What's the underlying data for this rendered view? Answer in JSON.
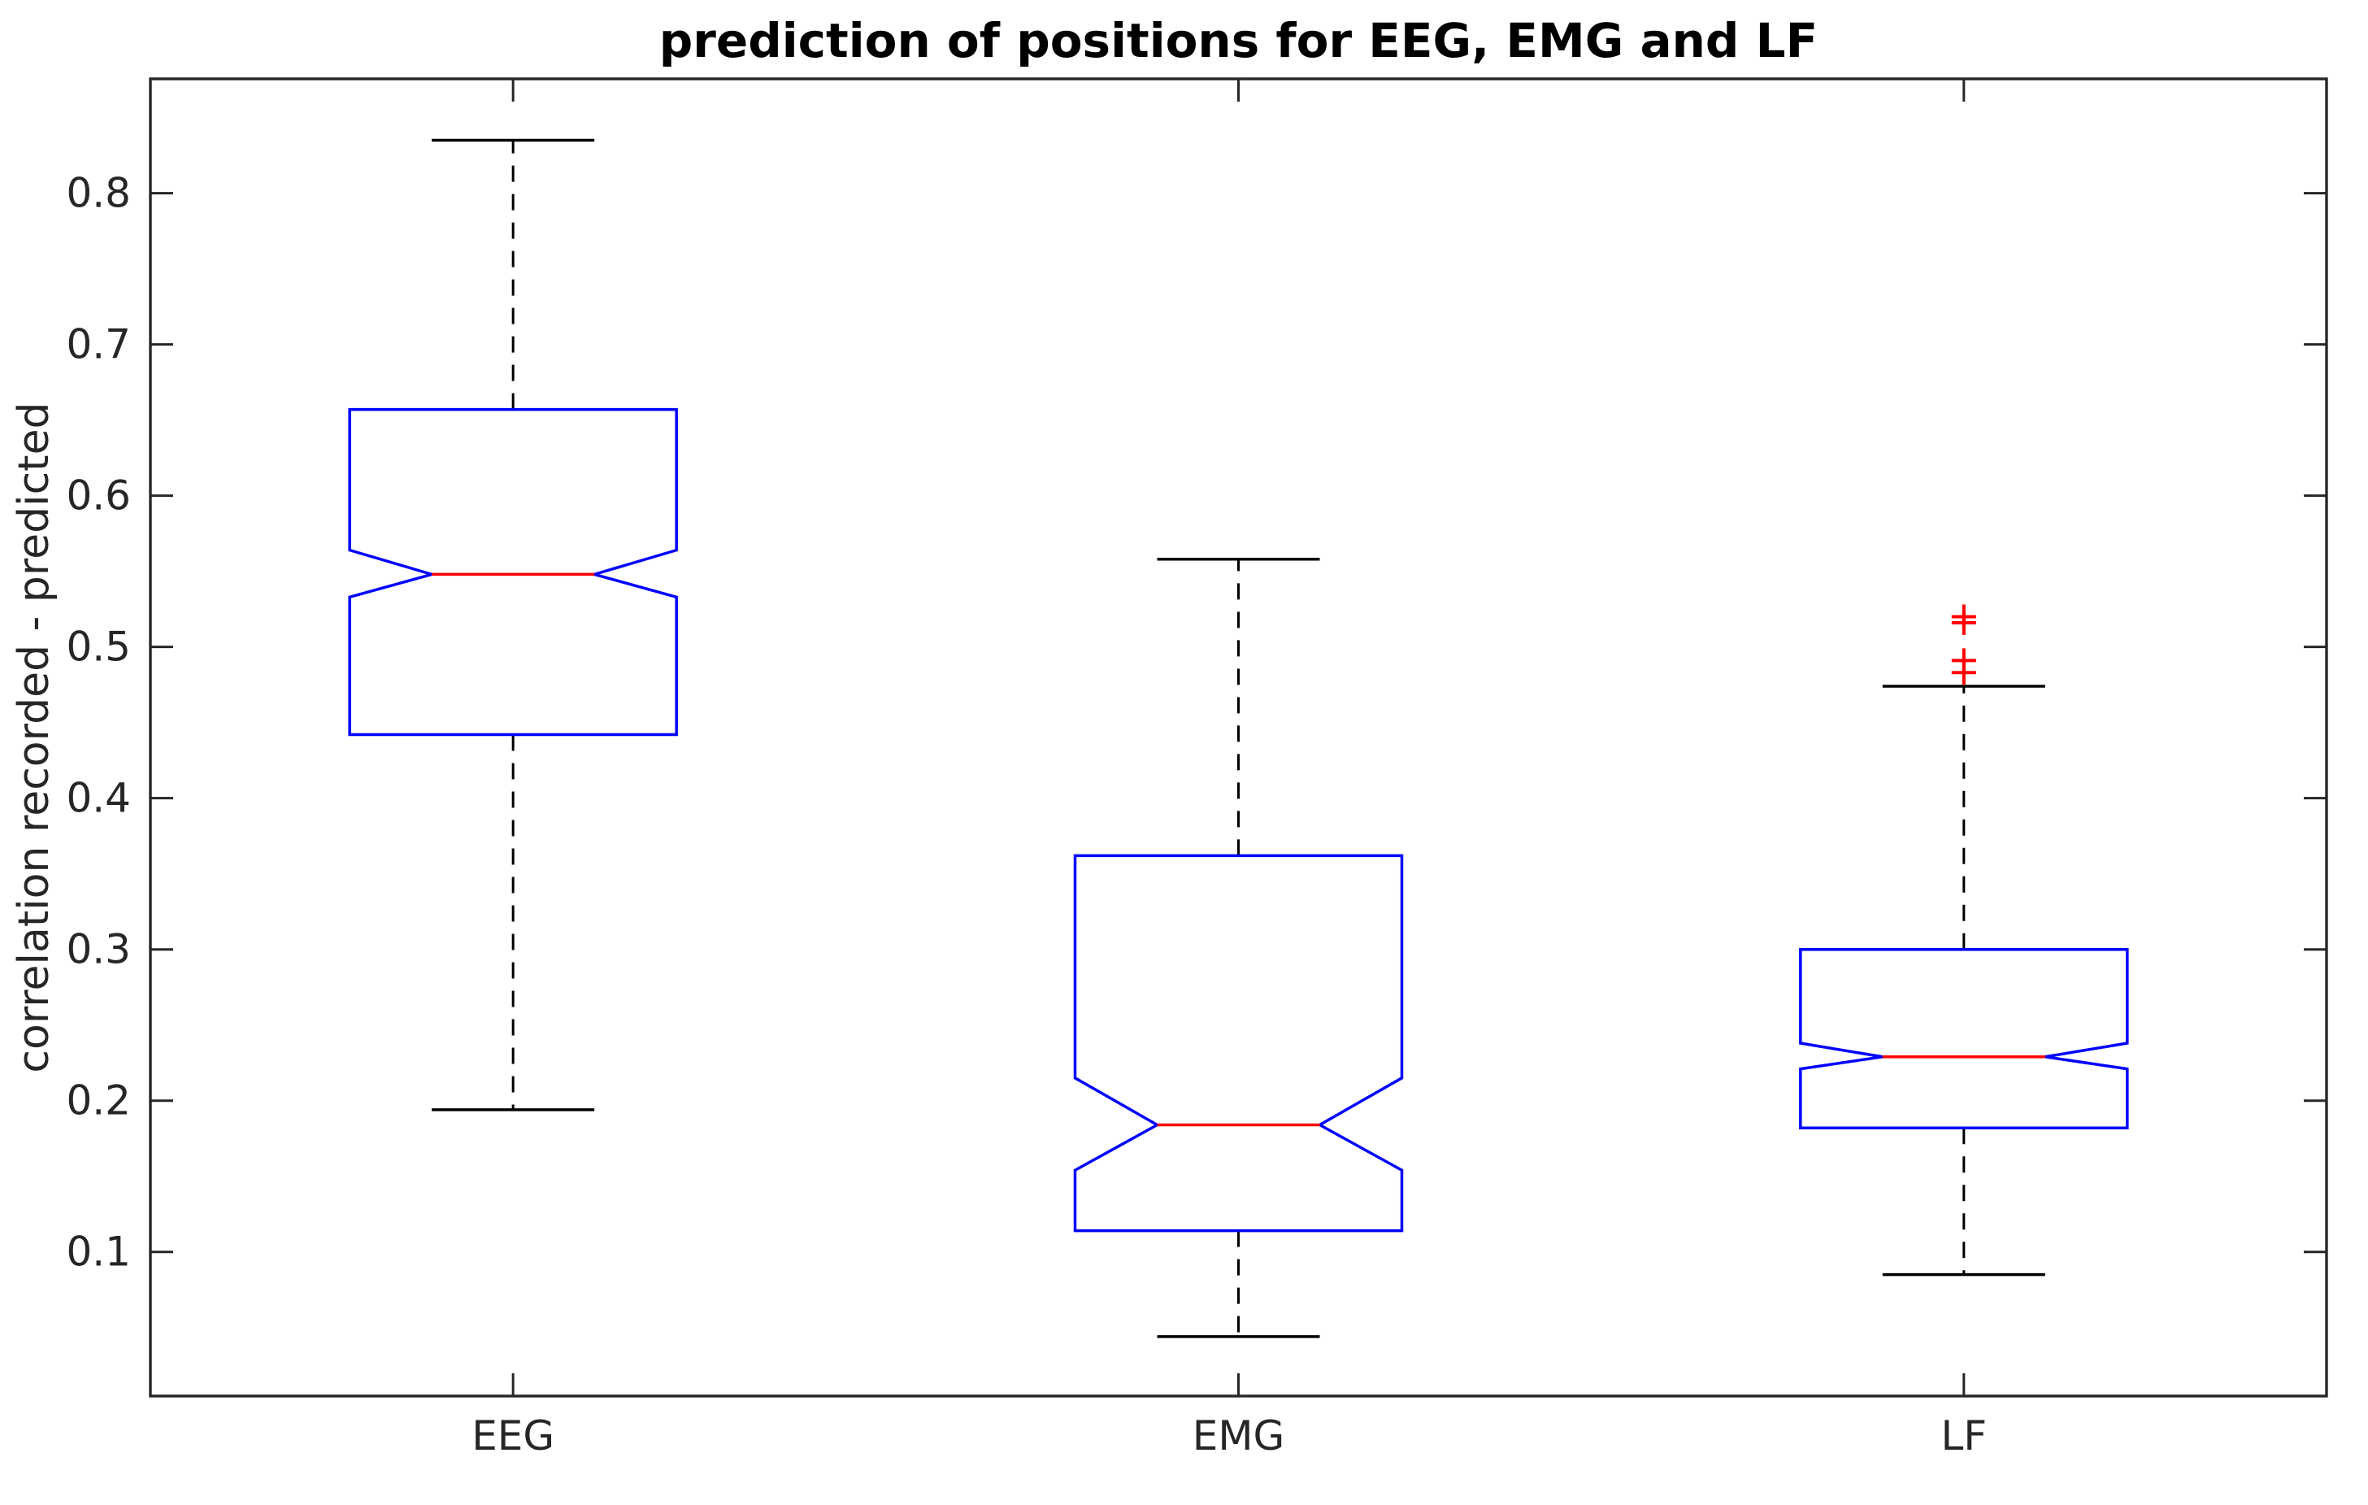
{
  "chart_data": {
    "type": "boxplot",
    "title": "prediction of positions for EEG, EMG and LF",
    "ylabel": "correlation recorded - predicted",
    "xlabel": "",
    "categories": [
      "EEG",
      "EMG",
      "LF"
    ],
    "yticks": [
      0.1,
      0.2,
      0.3,
      0.4,
      0.5,
      0.6,
      0.7,
      0.8
    ],
    "ylim": [
      0.0047,
      0.8756
    ],
    "grid": false,
    "legend": "none",
    "notched": true,
    "series": [
      {
        "name": "EEG",
        "whisker_low": 0.194,
        "q1": 0.442,
        "notch_low": 0.533,
        "median": 0.548,
        "notch_high": 0.564,
        "q3": 0.657,
        "whisker_high": 0.835,
        "outliers": []
      },
      {
        "name": "EMG",
        "whisker_low": 0.044,
        "q1": 0.114,
        "notch_low": 0.154,
        "median": 0.184,
        "notch_high": 0.215,
        "q3": 0.362,
        "whisker_high": 0.558,
        "outliers": []
      },
      {
        "name": "LF",
        "whisker_low": 0.085,
        "q1": 0.182,
        "notch_low": 0.221,
        "median": 0.229,
        "notch_high": 0.238,
        "q3": 0.3,
        "whisker_high": 0.474,
        "outliers": [
          0.52,
          0.516,
          0.491,
          0.483
        ]
      }
    ],
    "colors": {
      "box": "#0000ff",
      "median": "#ff0000",
      "outlier": "#ff0000",
      "whisker": "#000000",
      "axis": "#262626",
      "tick_text": "#262626",
      "title_text": "#000000"
    }
  }
}
